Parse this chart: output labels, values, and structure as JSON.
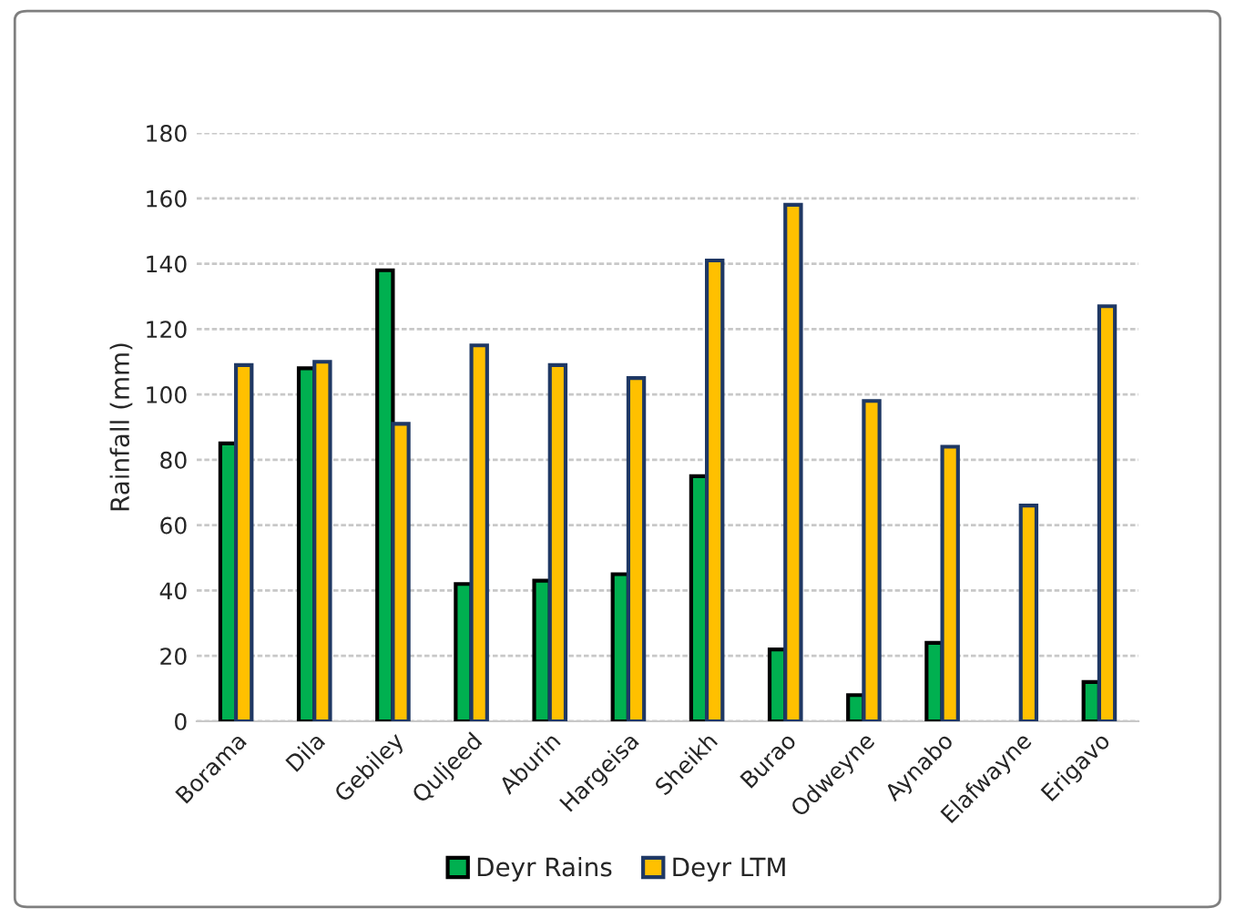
{
  "chart_data": {
    "type": "bar",
    "ylabel": "Rainfall (mm)",
    "categories": [
      "Borama",
      "Dila",
      "Gebiley",
      "Quljeed",
      "Aburin",
      "Hargeisa",
      "Sheikh",
      "Burao",
      "Odweyne",
      "Aynabo",
      "Elafwayne",
      "Erigavo"
    ],
    "series": [
      {
        "name": "Deyr Rains",
        "color": "#00b050",
        "values": [
          85,
          108,
          138,
          42,
          43,
          45,
          75,
          22,
          8,
          24,
          null,
          12
        ]
      },
      {
        "name": "Deyr LTM",
        "color": "#ffc000",
        "values": [
          109,
          110,
          91,
          115,
          109,
          105,
          141,
          158,
          98,
          84,
          66,
          127
        ]
      }
    ],
    "ylim": [
      0,
      180
    ],
    "yticks": [
      0,
      20,
      40,
      60,
      80,
      100,
      120,
      140,
      160,
      180
    ],
    "grid": "y",
    "legend": "bottom"
  }
}
